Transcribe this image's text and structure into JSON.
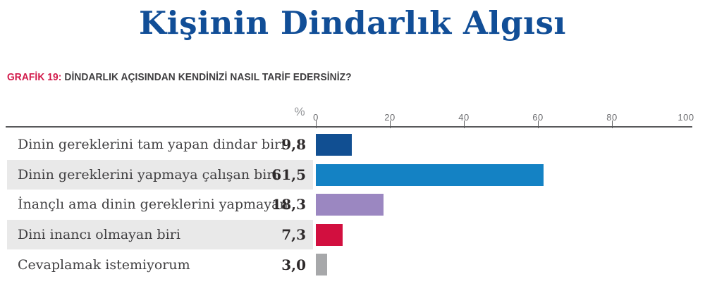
{
  "title": "Kişinin Dindarlık Algısı",
  "subtitle": {
    "prefix": "GRAFİK 19:",
    "text": " DİNDARLIK AÇISINDAN KENDİNİZİ NASIL TARİF EDERSİNİZ?"
  },
  "colors": {
    "title_blue": "#114e97",
    "subtitle_red": "#d2194a",
    "subtitle_dark": "#3f3e40",
    "axis_line": "#58595b",
    "tick_text": "#6d6e71",
    "percent_symbol": "#939598",
    "category_text": "#414042",
    "value_text": "#2d292a",
    "row_band": "#e9e9e9"
  },
  "chart_data": {
    "type": "bar",
    "orientation": "horizontal",
    "title": "Kişinin Dindarlık Algısı",
    "subtitle": "GRAFİK 19: DİNDARLIK AÇISINDAN KENDİNİZİ NASIL TARİF EDERSİNİZ?",
    "unit_label": "%",
    "categories": [
      "Dinin gereklerini tam yapan dindar biri",
      "Dinin gereklerini yapmaya çalışan biri",
      "İnançlı ama dinin gereklerini yapmayan",
      "Dini inancı olmayan biri",
      "Cevaplamak istemiyorum"
    ],
    "values": [
      9.8,
      61.5,
      18.3,
      7.3,
      3.0
    ],
    "value_labels": [
      "9,8",
      "61,5",
      "18,3",
      "7,3",
      "3,0"
    ],
    "bar_colors": [
      "#114f92",
      "#1482c4",
      "#9b87c1",
      "#d20f3f",
      "#a7a8aa"
    ],
    "row_shaded": [
      false,
      true,
      false,
      true,
      false
    ],
    "x_axis": {
      "ticks": [
        {
          "label": "0",
          "value": 0,
          "mark": true
        },
        {
          "label": "20",
          "value": 20,
          "mark": true
        },
        {
          "label": "40",
          "value": 40,
          "mark": true
        },
        {
          "label": "60",
          "value": 60,
          "mark": true
        },
        {
          "label": "80",
          "value": 80,
          "mark": true
        },
        {
          "label": "100",
          "value": 100,
          "mark": false
        }
      ],
      "range": [
        0,
        100
      ],
      "grid": false
    },
    "legend": null
  }
}
